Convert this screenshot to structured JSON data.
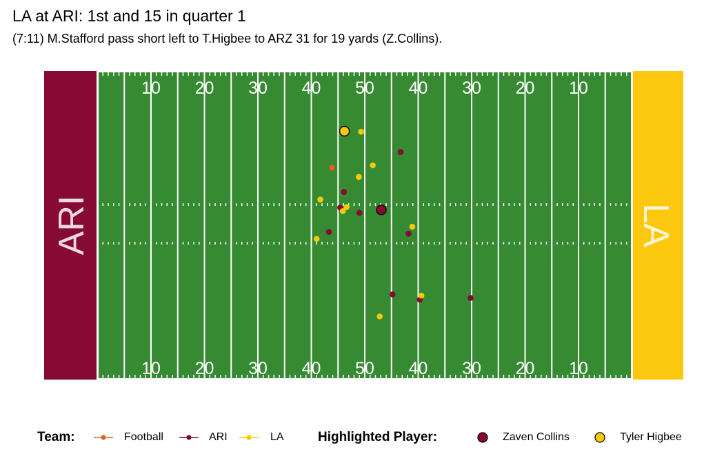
{
  "title": "LA at ARI: 1st and 15 in quarter 1",
  "subtitle": "(7:11) M.Stafford pass short left to T.Higbee to ARZ 31 for 19 yards (Z.Collins).",
  "colors": {
    "field": "#368a32",
    "lines": "#ffffff",
    "football": "#d2691e",
    "ARI": "#860a34",
    "LA": "#fcc80d"
  },
  "endzones": {
    "left": "ARI",
    "right": "LA"
  },
  "yard_numbers": [
    "10",
    "20",
    "30",
    "40",
    "50",
    "40",
    "30",
    "20",
    "10"
  ],
  "legend": {
    "team_title": "Team:",
    "teams": [
      {
        "label": "Football",
        "color": "#d2691e"
      },
      {
        "label": "ARI",
        "color": "#860a34"
      },
      {
        "label": "LA",
        "color": "#fcc80d"
      }
    ],
    "highlight_title": "Highlighted Player:",
    "highlighted": [
      {
        "label": "Zaven Collins",
        "color": "#860a34"
      },
      {
        "label": "Tyler Higbee",
        "color": "#fcc80d"
      }
    ]
  },
  "chart_data": {
    "type": "scatter",
    "xlabel": "",
    "ylabel": "",
    "xlim": [
      0,
      120
    ],
    "ylim": [
      0,
      53.3
    ],
    "series": [
      {
        "name": "Football",
        "points": [
          [
            53.9,
            36.6
          ]
        ]
      },
      {
        "name": "ARI",
        "points": [
          [
            66.7,
            39.3
          ],
          [
            56.1,
            32.4
          ],
          [
            55.4,
            29.7
          ],
          [
            59.0,
            28.8
          ],
          [
            53.3,
            25.5
          ],
          [
            68.2,
            25.2
          ],
          [
            65.2,
            14.7
          ],
          [
            70.3,
            13.8
          ],
          [
            79.8,
            14.1
          ],
          [
            63.1,
            29.3
          ]
        ]
      },
      {
        "name": "LA",
        "points": [
          [
            56.2,
            42.9
          ],
          [
            59.3,
            42.8
          ],
          [
            61.5,
            37.0
          ],
          [
            58.9,
            35.0
          ],
          [
            51.7,
            31.1
          ],
          [
            56.6,
            29.8
          ],
          [
            55.9,
            29.1
          ],
          [
            68.9,
            26.4
          ],
          [
            51.0,
            24.3
          ],
          [
            70.6,
            14.5
          ],
          [
            62.8,
            10.9
          ]
        ]
      }
    ],
    "highlighted_players": [
      {
        "name": "Zaven Collins",
        "team": "ARI",
        "x": 63.1,
        "y": 29.3
      },
      {
        "name": "Tyler Higbee",
        "team": "LA",
        "x": 56.2,
        "y": 42.9
      }
    ]
  }
}
